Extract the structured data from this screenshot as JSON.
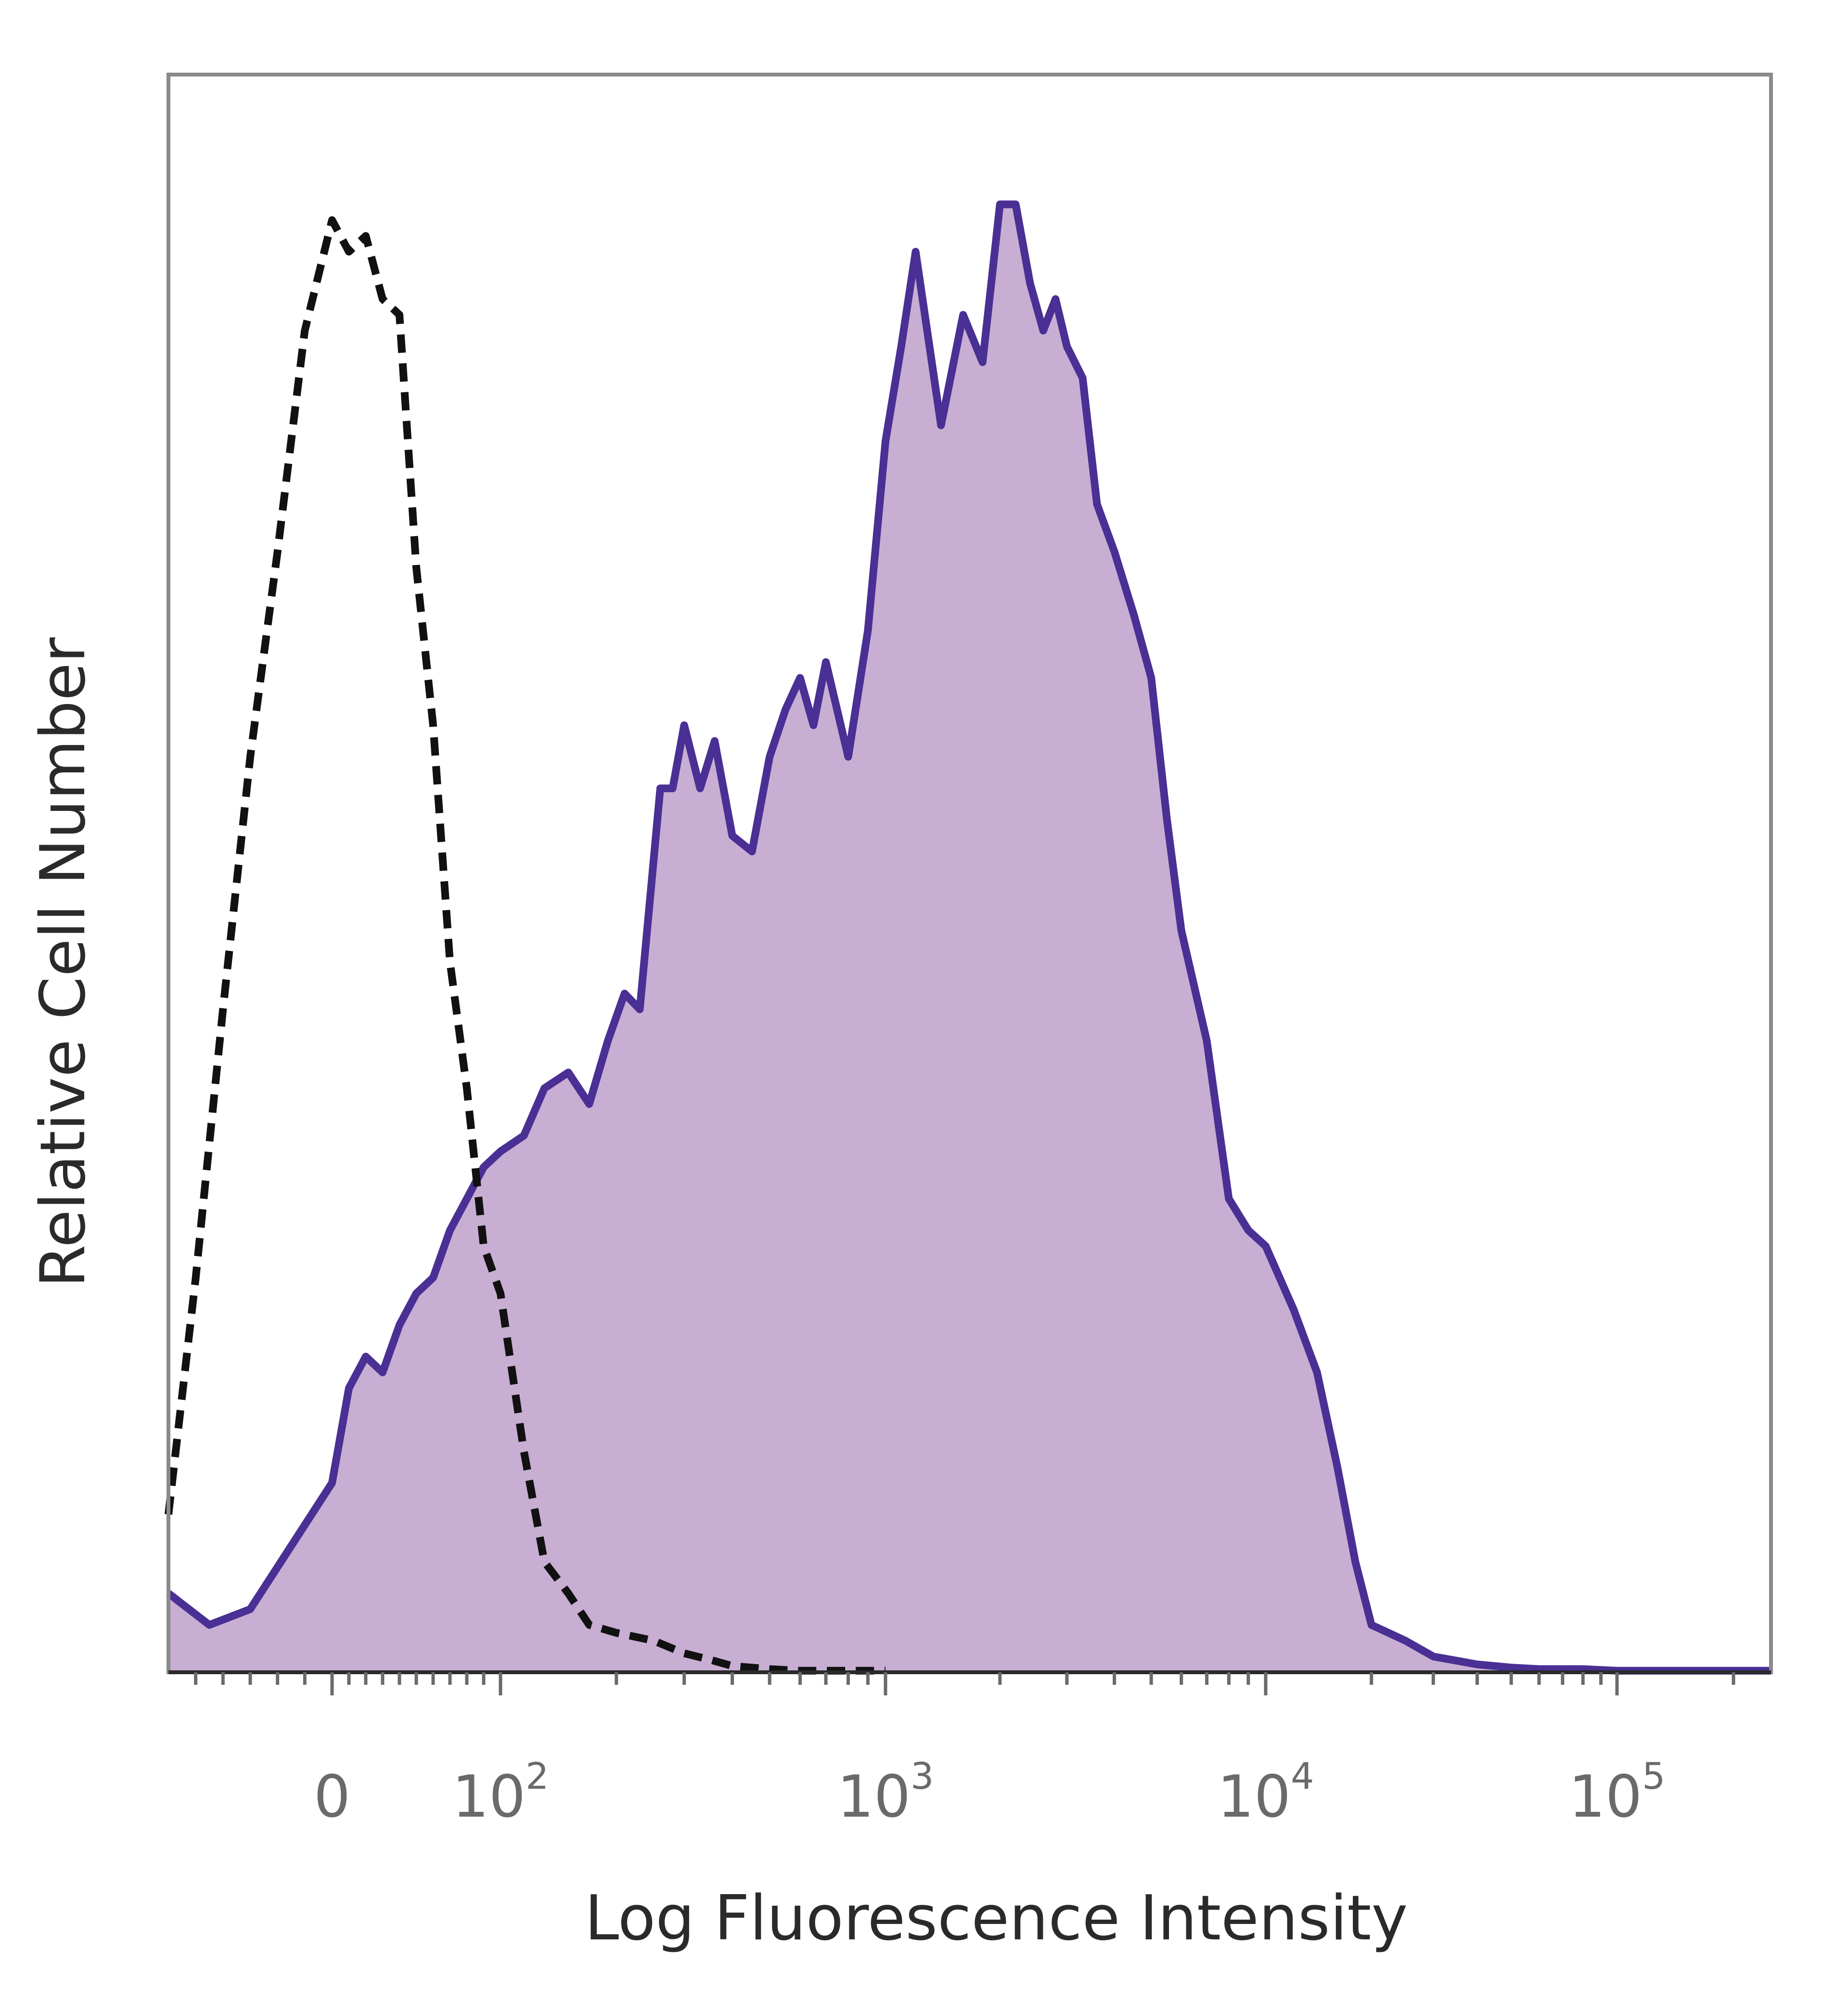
{
  "chart_data": {
    "type": "area",
    "xlabel": "Log Fluorescence Intensity",
    "ylabel": "Relative Cell Number",
    "x_scale": "biexponential",
    "xlim": [
      -60,
      250000
    ],
    "ylim": [
      0,
      100
    ],
    "grid": false,
    "x_ticks": [
      {
        "value": 0,
        "base": "0",
        "exp": ""
      },
      {
        "value": 100,
        "base": "10",
        "exp": "2"
      },
      {
        "value": 1000,
        "base": "10",
        "exp": "3"
      },
      {
        "value": 10000,
        "base": "10",
        "exp": "4"
      },
      {
        "value": 100000,
        "base": "10",
        "exp": "5"
      }
    ],
    "series": [
      {
        "style": "filled",
        "line_color": "#4a2f94",
        "fill_color": "#c8aed3",
        "x": [
          -60,
          -45,
          -30,
          -15,
          0,
          10,
          20,
          30,
          40,
          50,
          60,
          70,
          80,
          90,
          100,
          115,
          130,
          150,
          170,
          190,
          210,
          230,
          260,
          280,
          300,
          330,
          360,
          400,
          450,
          500,
          550,
          600,
          650,
          700,
          800,
          900,
          1000,
          1100,
          1200,
          1400,
          1600,
          1800,
          2000,
          2200,
          2400,
          2600,
          2800,
          3000,
          3300,
          3600,
          4000,
          4500,
          5000,
          5500,
          6000,
          7000,
          8000,
          9000,
          10000,
          12000,
          14000,
          16000,
          18000,
          20000,
          25000,
          30000,
          40000,
          50000,
          60000,
          80000,
          100000,
          150000,
          250000
        ],
        "values": [
          5,
          3,
          4,
          8,
          12,
          18,
          20,
          19,
          22,
          24,
          25,
          28,
          30,
          32,
          33,
          34,
          37,
          38,
          36,
          40,
          43,
          42,
          56,
          56,
          60,
          56,
          59,
          53,
          52,
          58,
          61,
          63,
          60,
          64,
          58,
          66,
          78,
          84,
          90,
          79,
          86,
          83,
          93,
          93,
          88,
          85,
          87,
          84,
          82,
          74,
          71,
          67,
          63,
          54,
          47,
          40,
          30,
          28,
          27,
          23,
          19,
          13,
          7,
          3,
          2,
          1,
          0.5,
          0.3,
          0.2,
          0.2,
          0.1,
          0.1,
          0.1
        ]
      },
      {
        "style": "dashed",
        "line_color": "#111111",
        "x": [
          -60,
          -50,
          -40,
          -30,
          -20,
          -10,
          0,
          10,
          20,
          30,
          40,
          50,
          60,
          70,
          80,
          90,
          100,
          115,
          130,
          150,
          170,
          200,
          250,
          300,
          350,
          400,
          500,
          600,
          800,
          1000
        ],
        "values": [
          10,
          25,
          42,
          58,
          71,
          85,
          92,
          90,
          91,
          87,
          86,
          70,
          60,
          45,
          37,
          27,
          24,
          14,
          7,
          5,
          3,
          2.5,
          2,
          1.2,
          0.8,
          0.4,
          0.2,
          0.1,
          0.1,
          0.1
        ]
      }
    ]
  }
}
